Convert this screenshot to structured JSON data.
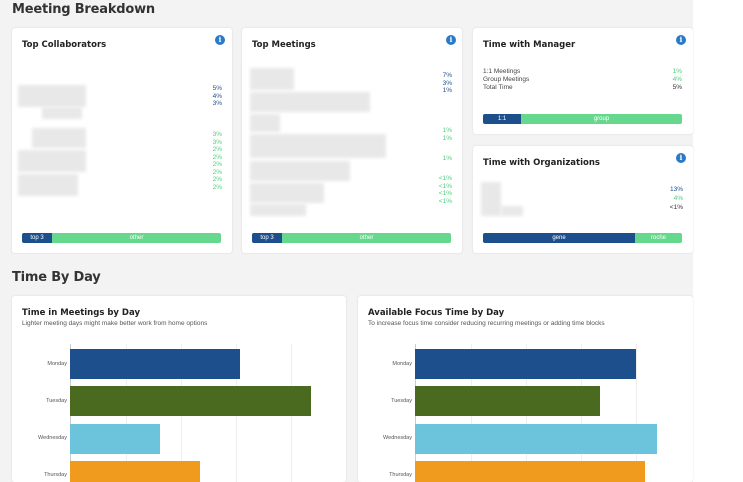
{
  "sections": {
    "meeting_breakdown": "Meeting Breakdown",
    "time_by_day": "Time By Day"
  },
  "top_collaborators": {
    "title": "Top Collaborators",
    "values_a": [
      "5%",
      "4%",
      "3%"
    ],
    "values_b": [
      "3%",
      "3%",
      "2%",
      "2%",
      "2%",
      "2%",
      "2%",
      "2%"
    ],
    "bar": {
      "left": "top 3",
      "right": "other"
    }
  },
  "top_meetings": {
    "title": "Top Meetings",
    "values_a": [
      "7%",
      "3%",
      "1%"
    ],
    "values_b": [
      "1%",
      "1%"
    ],
    "values_c": [
      "1%"
    ],
    "values_d": [
      "<1%",
      "<1%",
      "<1%",
      "<1%"
    ],
    "bar": {
      "left": "top 3",
      "right": "other"
    }
  },
  "time_with_manager": {
    "title": "Time with Manager",
    "rows": [
      {
        "label": "1:1 Meetings",
        "value": "1%"
      },
      {
        "label": "Group Meetings",
        "value": "4%"
      },
      {
        "label": "Total Time",
        "value": "5%"
      }
    ],
    "bar": {
      "left": "1:1",
      "right": "group"
    }
  },
  "time_with_orgs": {
    "title": "Time with Organizations",
    "values": [
      "13%",
      "4%",
      "<1%"
    ],
    "bar": {
      "left": "gene",
      "right": "roche"
    }
  },
  "meetings_by_day": {
    "title": "Time in Meetings by Day",
    "subtitle": "Lighter meeting days might make better work from home options",
    "days": [
      "Monday",
      "Tuesday",
      "Wednesday",
      "Thursday"
    ]
  },
  "focus_by_day": {
    "title": "Available Focus Time by Day",
    "subtitle": "To increase focus time consider reducing recurring meetings or adding time blocks",
    "days": [
      "Monday",
      "Tuesday",
      "Wednesday",
      "Thursday"
    ]
  },
  "colors": {
    "monday": "#1d4f8c",
    "tuesday": "#4a6a1f",
    "wednesday": "#6cc3dc",
    "thursday": "#f09a1e"
  },
  "info_icon": "i"
}
